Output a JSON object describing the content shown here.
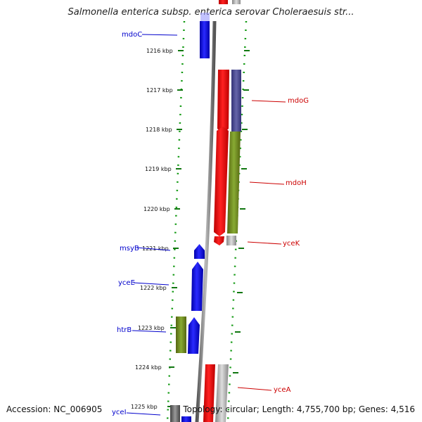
{
  "title": "Salmonella enterica subsp. enterica serovar Choleraesuis str...",
  "footer": {
    "accession": "Accession: NC_006905",
    "topology": "Topology: circular; Length: 4,755,700 bp; Genes: 4,516"
  },
  "colors": {
    "plus_strand_gene": "#0000ee",
    "minus_strand_gene": "#ee0000",
    "backbone": "#888888",
    "tick": "#117711",
    "dots": "#119911"
  },
  "ruler": {
    "unit": "kbp",
    "ticks": [
      "1216 kbp",
      "1217 kbp",
      "1218 kbp",
      "1219 kbp",
      "1220 kbp",
      "1221 kbp",
      "1222 kbp",
      "1223 kbp",
      "1224 kbp",
      "1225 kbp"
    ]
  },
  "genes_left": [
    {
      "name": "mdoC",
      "color": "#0000cc"
    },
    {
      "name": "msyB",
      "color": "#0000cc"
    },
    {
      "name": "yceE",
      "color": "#0000cc"
    },
    {
      "name": "htrB",
      "color": "#0000cc"
    },
    {
      "name": "yceI",
      "color": "#0000cc"
    }
  ],
  "genes_right": [
    {
      "name": "mdoG",
      "color": "#cc0000"
    },
    {
      "name": "mdoH",
      "color": "#cc0000"
    },
    {
      "name": "yceK",
      "color": "#cc0000"
    },
    {
      "name": "yceA",
      "color": "#cc0000"
    }
  ]
}
